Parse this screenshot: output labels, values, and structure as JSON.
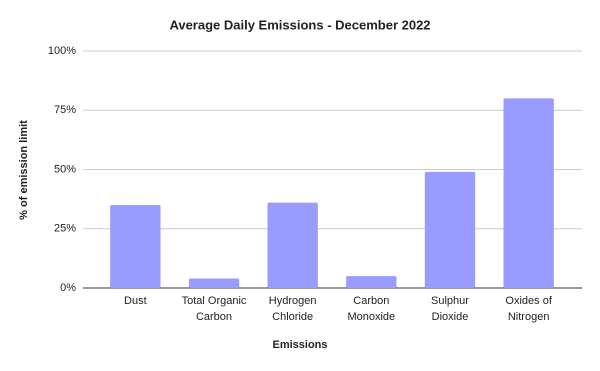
{
  "chart_data": {
    "type": "bar",
    "title": "Average Daily Emissions - December 2022",
    "x_label": "Emissions",
    "y_label": "% of emission limit",
    "categories": [
      "Dust",
      "Total Organic Carbon",
      "Hydrogen Chloride",
      "Carbon Monoxide",
      "Sulphur Dioxide",
      "Oxides of Nitrogen"
    ],
    "values": [
      35,
      4,
      36,
      5,
      49,
      80
    ],
    "color": "#9a9bff",
    "ylim": [
      0,
      100
    ],
    "yticks": [
      {
        "value": 0,
        "label": "0%"
      },
      {
        "value": 25,
        "label": "25%"
      },
      {
        "value": 50,
        "label": "50%"
      },
      {
        "value": 75,
        "label": "75%"
      },
      {
        "value": 100,
        "label": "100%"
      }
    ],
    "grid": true
  }
}
